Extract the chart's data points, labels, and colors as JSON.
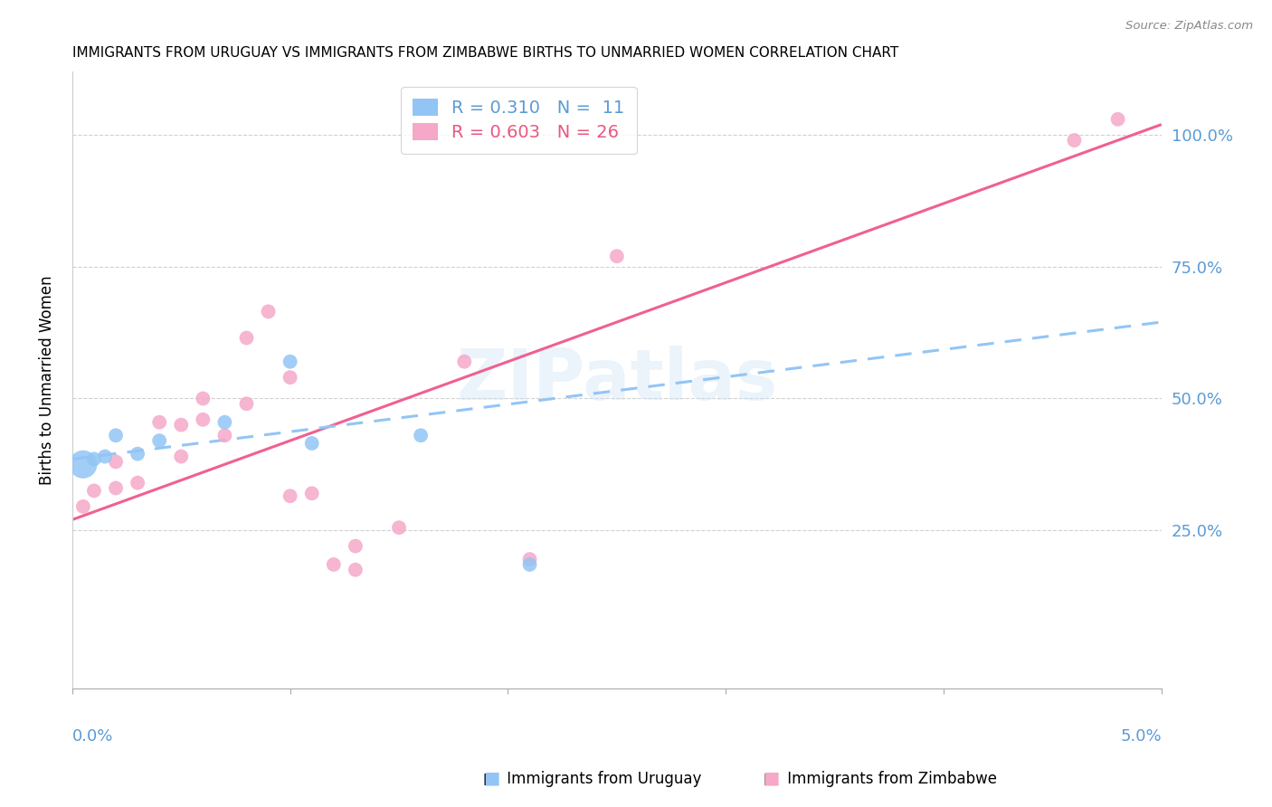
{
  "title": "IMMIGRANTS FROM URUGUAY VS IMMIGRANTS FROM ZIMBABWE BIRTHS TO UNMARRIED WOMEN CORRELATION CHART",
  "source": "Source: ZipAtlas.com",
  "ylabel": "Births to Unmarried Women",
  "ytick_labels": [
    "25.0%",
    "50.0%",
    "75.0%",
    "100.0%"
  ],
  "ytick_values": [
    0.25,
    0.5,
    0.75,
    1.0
  ],
  "xlim": [
    0.0,
    0.05
  ],
  "ylim": [
    -0.05,
    1.12
  ],
  "legend_r_uruguay": "R = 0.310",
  "legend_n_uruguay": "N =  11",
  "legend_r_zimbabwe": "R = 0.603",
  "legend_n_zimbabwe": "N = 26",
  "color_uruguay": "#92c5f5",
  "color_zimbabwe": "#f5a8c8",
  "color_trend_uruguay": "#92c5f5",
  "color_trend_zimbabwe": "#f06090",
  "color_axis": "#5b9bd5",
  "watermark": "ZIPatlas",
  "uruguay_x": [
    0.0005,
    0.001,
    0.0015,
    0.002,
    0.003,
    0.004,
    0.007,
    0.01,
    0.011,
    0.016,
    0.021
  ],
  "uruguay_y": [
    0.375,
    0.385,
    0.39,
    0.43,
    0.395,
    0.42,
    0.455,
    0.57,
    0.415,
    0.43,
    0.185
  ],
  "zimbabwe_x": [
    0.0005,
    0.001,
    0.002,
    0.002,
    0.003,
    0.004,
    0.005,
    0.005,
    0.006,
    0.006,
    0.007,
    0.008,
    0.008,
    0.009,
    0.01,
    0.01,
    0.011,
    0.012,
    0.013,
    0.013,
    0.015,
    0.018,
    0.021,
    0.025,
    0.046,
    0.048
  ],
  "zimbabwe_y": [
    0.295,
    0.325,
    0.38,
    0.33,
    0.34,
    0.455,
    0.39,
    0.45,
    0.46,
    0.5,
    0.43,
    0.49,
    0.615,
    0.665,
    0.54,
    0.315,
    0.32,
    0.185,
    0.175,
    0.22,
    0.255,
    0.57,
    0.195,
    0.77,
    0.99,
    1.03
  ],
  "trend_zim_x0": 0.0,
  "trend_zim_y0": 0.27,
  "trend_zim_x1": 0.05,
  "trend_zim_y1": 1.02,
  "trend_uru_x0": 0.0,
  "trend_uru_y0": 0.385,
  "trend_uru_x1": 0.05,
  "trend_uru_y1": 0.645
}
